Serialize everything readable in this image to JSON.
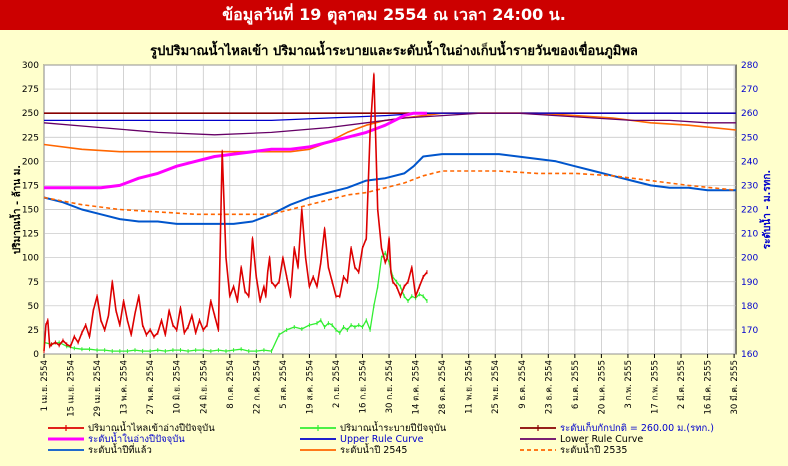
{
  "banner": {
    "text": "ข้อมูลวันที่ 19  ตุลาคม  2554  ณ เวลา 24:00 น."
  },
  "chart_data": {
    "type": "line",
    "title": "รูปปริมาณน้ำไหลเข้า ปริมาณน้ำระบายและระดับน้ำในอ่างเก็บน้ำรายวันของเขื่อนภูมิพล",
    "ylabel_left": "ปริมาณน้ำ - ล้าน ม.",
    "ylabel_right": "ระดับน้ำ - ม.รทก.",
    "ylim_left": [
      0,
      300
    ],
    "ylim_right": [
      160,
      280
    ],
    "yticks_left": [
      "0",
      "25",
      "50",
      "75",
      "100",
      "125",
      "150",
      "175",
      "200",
      "225",
      "250",
      "275",
      "300"
    ],
    "yticks_right": [
      "160",
      "170",
      "180",
      "190",
      "200",
      "210",
      "220",
      "230",
      "240",
      "250",
      "260",
      "270",
      "280"
    ],
    "xlim_days": [
      0,
      365
    ],
    "xtick_labels": [
      "1 เม.ย. 2554",
      "15 เม.ย. 2554",
      "29 เม.ย. 2554",
      "13 พ.ค. 2554",
      "27 พ.ค. 2554",
      "10 มิ.ย. 2554",
      "24 มิ.ย. 2554",
      "8 ก.ค. 2554",
      "22 ก.ค. 2554",
      "5 ส.ค. 2554",
      "19 ส.ค. 2554",
      "2 ก.ย. 2554",
      "16 ก.ย. 2554",
      "30 ก.ย. 2554",
      "14 ต.ค. 2554",
      "28 ต.ค. 2554",
      "11 พ.ย. 2554",
      "25 พ.ย. 2554",
      "9 ธ.ค. 2554",
      "23 ธ.ค. 2554",
      "6 ม.ค. 2555",
      "20 ม.ค. 2555",
      "3 ก.พ. 2555",
      "17 ก.พ. 2555",
      "2 มี.ค. 2555",
      "16 มี.ค. 2555",
      "30 มี.ค. 2555"
    ],
    "series": [
      {
        "name": "ปริมาณน้ำไหลเข้าอ่างปีปัจจุบัน",
        "axis": "left",
        "color": "#dd0000",
        "width": 1.6,
        "marker": true,
        "x": [
          0,
          1,
          2,
          3,
          4,
          6,
          8,
          10,
          12,
          14,
          16,
          18,
          20,
          22,
          24,
          26,
          28,
          30,
          32,
          34,
          36,
          38,
          40,
          42,
          44,
          46,
          48,
          50,
          52,
          54,
          56,
          58,
          60,
          62,
          64,
          66,
          68,
          70,
          72,
          74,
          76,
          78,
          80,
          82,
          84,
          86,
          88,
          90,
          92,
          94,
          96,
          98,
          100,
          102,
          104,
          106,
          108,
          110,
          112,
          114,
          116,
          117,
          118,
          119,
          120,
          122,
          124,
          126,
          128,
          130,
          132,
          134,
          136,
          138,
          140,
          142,
          144,
          146,
          148,
          150,
          152,
          154,
          156,
          158,
          160,
          162,
          164,
          166,
          168,
          170,
          172,
          174,
          176,
          178,
          180,
          181,
          182,
          183,
          184,
          186,
          188,
          190,
          192,
          194,
          196,
          198,
          200,
          202
        ],
        "y": [
          3,
          30,
          35,
          8,
          10,
          12,
          9,
          14,
          10,
          8,
          18,
          12,
          22,
          30,
          18,
          45,
          60,
          35,
          25,
          40,
          75,
          45,
          30,
          55,
          35,
          20,
          42,
          60,
          30,
          20,
          25,
          18,
          22,
          35,
          20,
          45,
          30,
          25,
          48,
          22,
          28,
          40,
          22,
          35,
          25,
          30,
          55,
          40,
          25,
          210,
          100,
          60,
          70,
          55,
          90,
          65,
          60,
          120,
          80,
          55,
          70,
          60,
          85,
          100,
          75,
          70,
          75,
          100,
          80,
          60,
          110,
          90,
          150,
          100,
          70,
          80,
          70,
          95,
          130,
          90,
          75,
          60,
          60,
          80,
          75,
          110,
          90,
          85,
          110,
          120,
          230,
          290,
          150,
          110,
          95,
          100,
          120,
          85,
          75,
          70,
          60,
          70,
          75,
          90,
          60,
          70,
          80,
          85
        ]
      },
      {
        "name": "ปริมาณน้ำระบายปีปัจจุบัน",
        "axis": "left",
        "color": "#33ee33",
        "width": 1.3,
        "marker": true,
        "x": [
          0,
          4,
          8,
          12,
          16,
          20,
          24,
          28,
          32,
          36,
          40,
          44,
          48,
          52,
          56,
          60,
          64,
          68,
          72,
          76,
          80,
          84,
          88,
          92,
          96,
          100,
          104,
          108,
          112,
          116,
          120,
          124,
          128,
          132,
          136,
          140,
          144,
          146,
          148,
          150,
          152,
          154,
          156,
          158,
          160,
          162,
          164,
          166,
          168,
          170,
          172,
          174,
          176,
          178,
          180,
          182,
          184,
          186,
          188,
          190,
          192,
          194,
          196,
          198,
          200,
          202
        ],
        "y": [
          12,
          10,
          12,
          8,
          6,
          5,
          5,
          4,
          4,
          3,
          3,
          3,
          4,
          3,
          3,
          4,
          3,
          4,
          4,
          3,
          4,
          4,
          3,
          4,
          3,
          4,
          5,
          3,
          3,
          4,
          3,
          20,
          25,
          28,
          26,
          30,
          32,
          35,
          28,
          32,
          30,
          25,
          22,
          28,
          25,
          30,
          28,
          30,
          28,
          35,
          25,
          50,
          70,
          100,
          105,
          95,
          80,
          75,
          70,
          60,
          55,
          60,
          58,
          62,
          60,
          55
        ]
      },
      {
        "name": "ระดับเก็บกักปกติ = 260.00 ม.(รทก.)",
        "axis": "right",
        "color": "#880000",
        "width": 1.6,
        "x": [
          0,
          365
        ],
        "y": [
          260,
          260
        ]
      },
      {
        "name": "ระดับน้ำในอ่างปีปัจจุบัน",
        "axis": "right",
        "color": "#ff00ff",
        "width": 3,
        "x": [
          0,
          10,
          20,
          30,
          40,
          50,
          60,
          70,
          80,
          90,
          100,
          110,
          120,
          130,
          140,
          150,
          160,
          170,
          180,
          185,
          190,
          195,
          200,
          202
        ],
        "y": [
          229,
          229,
          229,
          229,
          230,
          233,
          235,
          238,
          240,
          242,
          243,
          244,
          245,
          245,
          246,
          248,
          250,
          252,
          255,
          257,
          259,
          260,
          260,
          260
        ]
      },
      {
        "name": "Upper Rule Curve",
        "axis": "right",
        "color": "#0000cc",
        "width": 1.3,
        "x": [
          0,
          60,
          120,
          150,
          180,
          200,
          220,
          240,
          260,
          280,
          300,
          320,
          340,
          365
        ],
        "y": [
          257,
          257,
          257,
          258,
          259,
          260,
          260,
          260,
          260,
          260,
          260,
          260,
          260,
          260
        ]
      },
      {
        "name": "Lower Rule Curve",
        "axis": "right",
        "color": "#660066",
        "width": 1.3,
        "x": [
          0,
          30,
          60,
          90,
          120,
          150,
          170,
          190,
          210,
          230,
          250,
          270,
          290,
          310,
          330,
          350,
          365
        ],
        "y": [
          256,
          254,
          252,
          251,
          252,
          254,
          256,
          258,
          259,
          260,
          260,
          259,
          258,
          257,
          257,
          256,
          256
        ]
      },
      {
        "name": "ระดับน้ำปีที่แล้ว",
        "axis": "right",
        "color": "#0055cc",
        "width": 2,
        "x": [
          0,
          10,
          20,
          30,
          40,
          50,
          60,
          70,
          80,
          90,
          100,
          110,
          120,
          130,
          140,
          150,
          160,
          170,
          180,
          190,
          195,
          200,
          210,
          220,
          230,
          240,
          250,
          260,
          270,
          280,
          290,
          300,
          310,
          320,
          330,
          340,
          350,
          360,
          365
        ],
        "y": [
          225,
          223,
          220,
          218,
          216,
          215,
          215,
          214,
          214,
          214,
          214,
          215,
          218,
          222,
          225,
          227,
          229,
          232,
          233,
          235,
          238,
          242,
          243,
          243,
          243,
          243,
          242,
          241,
          240,
          238,
          236,
          234,
          232,
          230,
          229,
          229,
          228,
          228,
          228
        ]
      },
      {
        "name": "ระดับน้ำปี 2545",
        "axis": "right",
        "color": "#ff6600",
        "width": 1.6,
        "x": [
          0,
          20,
          40,
          60,
          80,
          100,
          120,
          130,
          140,
          150,
          160,
          170,
          180,
          190,
          200,
          210,
          220,
          240,
          260,
          280,
          300,
          320,
          340,
          365
        ],
        "y": [
          247,
          245,
          244,
          244,
          244,
          244,
          244,
          244,
          245,
          248,
          252,
          255,
          257,
          258,
          259,
          260,
          260,
          260,
          260,
          259,
          258,
          256,
          255,
          253
        ]
      },
      {
        "name": "ระดับน้ำปี 2535",
        "axis": "right",
        "color": "#ff6600",
        "width": 1.6,
        "dashed": true,
        "x": [
          0,
          20,
          40,
          60,
          80,
          100,
          120,
          130,
          140,
          150,
          160,
          170,
          180,
          190,
          200,
          210,
          220,
          240,
          260,
          280,
          300,
          320,
          340,
          365
        ],
        "y": [
          225,
          222,
          220,
          219,
          218,
          218,
          218,
          220,
          222,
          224,
          226,
          227,
          229,
          231,
          234,
          236,
          236,
          236,
          235,
          235,
          234,
          232,
          230,
          228
        ]
      }
    ],
    "legend": [
      {
        "label": "ปริมาณน้ำไหลเข้าอ่างปีปัจจุบัน",
        "color": "#dd0000",
        "blue": false,
        "marker": true,
        "dashed": false
      },
      {
        "label": "ปริมาณน้ำระบายปีปัจจุบัน",
        "color": "#33ee33",
        "blue": false,
        "marker": true,
        "dashed": false
      },
      {
        "label": "ระดับเก็บกักปกติ = 260.00 ม.(รทก.)",
        "color": "#880000",
        "blue": true,
        "marker": true,
        "dashed": false
      },
      {
        "label": "ระดับน้ำในอ่างปีปัจจุบัน",
        "color": "#ff00ff",
        "blue": true,
        "marker": false,
        "dashed": false
      },
      {
        "label": "Upper Rule Curve",
        "color": "#0000cc",
        "blue": true,
        "marker": false,
        "dashed": false
      },
      {
        "label": "Lower Rule Curve",
        "color": "#660066",
        "blue": false,
        "marker": false,
        "dashed": false
      },
      {
        "label": "ระดับน้ำปีที่แล้ว",
        "color": "#0055cc",
        "blue": false,
        "marker": false,
        "dashed": false
      },
      {
        "label": "ระดับน้ำปี 2545",
        "color": "#ff6600",
        "blue": false,
        "marker": false,
        "dashed": false
      },
      {
        "label": "ระดับน้ำปี 2535",
        "color": "#ff6600",
        "blue": false,
        "marker": false,
        "dashed": true
      }
    ],
    "grid": true,
    "plot_background": "#ffffff"
  }
}
